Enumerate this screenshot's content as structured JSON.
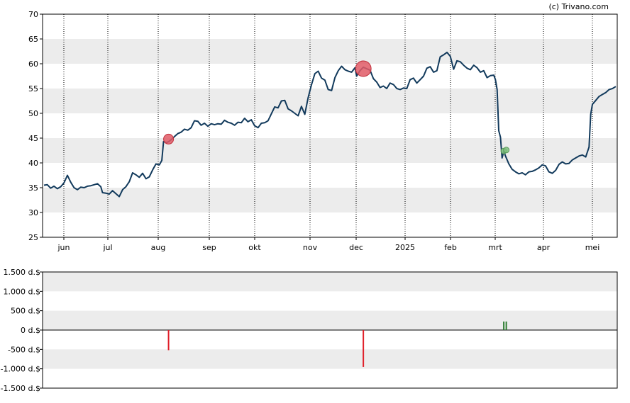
{
  "credit": "(c) Trivano.com",
  "chart_data": [
    {
      "type": "line",
      "ylim": [
        25,
        70
      ],
      "yticks": [
        25,
        30,
        35,
        40,
        45,
        50,
        55,
        60,
        65,
        70
      ],
      "x_tick_labels": [
        "jun",
        "jul",
        "aug",
        "sep",
        "okt",
        "nov",
        "dec",
        "2025",
        "feb",
        "mrt",
        "apr",
        "mei"
      ],
      "grid": "horizontal bands, dotted vertical month lines",
      "line_color": "#123a5c",
      "series": [
        {
          "values": [
            [
              0,
              35.5
            ],
            [
              4,
              35.6
            ],
            [
              8,
              34.9
            ],
            [
              12,
              35.3
            ],
            [
              16,
              34.8
            ],
            [
              20,
              35.2
            ],
            [
              24,
              36.0
            ],
            [
              28,
              37.5
            ],
            [
              32,
              36.1
            ],
            [
              36,
              35.0
            ],
            [
              40,
              34.6
            ],
            [
              44,
              35.1
            ],
            [
              48,
              35.0
            ],
            [
              52,
              35.3
            ],
            [
              56,
              35.4
            ],
            [
              60,
              35.6
            ],
            [
              64,
              35.8
            ],
            [
              68,
              35.2
            ],
            [
              70,
              34.0
            ],
            [
              74,
              33.9
            ],
            [
              78,
              33.7
            ],
            [
              82,
              34.4
            ],
            [
              86,
              33.8
            ],
            [
              90,
              33.2
            ],
            [
              94,
              34.6
            ],
            [
              98,
              35.2
            ],
            [
              102,
              36.2
            ],
            [
              106,
              38.0
            ],
            [
              110,
              37.6
            ],
            [
              114,
              37.1
            ],
            [
              118,
              37.9
            ],
            [
              122,
              36.8
            ],
            [
              126,
              37.2
            ],
            [
              130,
              38.6
            ],
            [
              134,
              39.8
            ],
            [
              138,
              39.6
            ],
            [
              141,
              40.5
            ],
            [
              143,
              44.3
            ],
            [
              147,
              44.1
            ],
            [
              150,
              44.4
            ],
            [
              153,
              44.8
            ],
            [
              156,
              45.3
            ],
            [
              160,
              45.9
            ],
            [
              164,
              46.2
            ],
            [
              168,
              46.8
            ],
            [
              172,
              46.6
            ],
            [
              176,
              47.1
            ],
            [
              180,
              48.5
            ],
            [
              184,
              48.4
            ],
            [
              188,
              47.6
            ],
            [
              192,
              48.0
            ],
            [
              196,
              47.4
            ],
            [
              200,
              47.9
            ],
            [
              204,
              47.7
            ],
            [
              208,
              47.9
            ],
            [
              212,
              47.8
            ],
            [
              216,
              48.6
            ],
            [
              220,
              48.2
            ],
            [
              224,
              48.0
            ],
            [
              228,
              47.6
            ],
            [
              232,
              48.2
            ],
            [
              236,
              48.1
            ],
            [
              240,
              49.0
            ],
            [
              244,
              48.3
            ],
            [
              248,
              48.7
            ],
            [
              252,
              47.5
            ],
            [
              256,
              47.1
            ],
            [
              260,
              48.0
            ],
            [
              264,
              48.1
            ],
            [
              268,
              48.5
            ],
            [
              272,
              49.9
            ],
            [
              276,
              51.3
            ],
            [
              280,
              51.1
            ],
            [
              284,
              52.5
            ],
            [
              288,
              52.6
            ],
            [
              292,
              50.9
            ],
            [
              296,
              50.5
            ],
            [
              300,
              50.0
            ],
            [
              304,
              49.5
            ],
            [
              308,
              51.4
            ],
            [
              312,
              49.8
            ],
            [
              316,
              53.2
            ],
            [
              320,
              55.8
            ],
            [
              324,
              58.0
            ],
            [
              328,
              58.5
            ],
            [
              332,
              57.1
            ],
            [
              336,
              56.7
            ],
            [
              340,
              54.8
            ],
            [
              344,
              54.6
            ],
            [
              348,
              57.2
            ],
            [
              352,
              58.6
            ],
            [
              356,
              59.5
            ],
            [
              360,
              58.8
            ],
            [
              364,
              58.5
            ],
            [
              368,
              58.3
            ],
            [
              372,
              59.2
            ],
            [
              374,
              57.5
            ],
            [
              378,
              58.6
            ],
            [
              382,
              59.3
            ],
            [
              386,
              59.0
            ],
            [
              390,
              58.7
            ],
            [
              394,
              57.0
            ],
            [
              398,
              56.3
            ],
            [
              402,
              55.2
            ],
            [
              406,
              55.5
            ],
            [
              410,
              55.0
            ],
            [
              414,
              56.1
            ],
            [
              418,
              55.8
            ],
            [
              422,
              55.0
            ],
            [
              426,
              54.8
            ],
            [
              430,
              55.1
            ],
            [
              434,
              55.0
            ],
            [
              438,
              56.8
            ],
            [
              442,
              57.1
            ],
            [
              446,
              56.1
            ],
            [
              450,
              56.8
            ],
            [
              454,
              57.5
            ],
            [
              458,
              59.1
            ],
            [
              462,
              59.4
            ],
            [
              466,
              58.3
            ],
            [
              470,
              58.6
            ],
            [
              474,
              61.4
            ],
            [
              478,
              61.8
            ],
            [
              482,
              62.3
            ],
            [
              486,
              61.5
            ],
            [
              490,
              58.9
            ],
            [
              494,
              60.6
            ],
            [
              498,
              60.4
            ],
            [
              502,
              59.7
            ],
            [
              506,
              59.1
            ],
            [
              510,
              58.8
            ],
            [
              514,
              59.7
            ],
            [
              518,
              59.2
            ],
            [
              522,
              58.3
            ],
            [
              526,
              58.6
            ],
            [
              530,
              57.2
            ],
            [
              534,
              57.6
            ],
            [
              538,
              57.7
            ],
            [
              540,
              56.8
            ],
            [
              542,
              54.8
            ],
            [
              544,
              46.5
            ],
            [
              546,
              45.2
            ],
            [
              548,
              41.0
            ],
            [
              550,
              42.3
            ],
            [
              552,
              41.4
            ],
            [
              556,
              39.8
            ],
            [
              560,
              38.7
            ],
            [
              564,
              38.2
            ],
            [
              568,
              37.8
            ],
            [
              572,
              38.0
            ],
            [
              576,
              37.6
            ],
            [
              580,
              38.2
            ],
            [
              584,
              38.3
            ],
            [
              588,
              38.6
            ],
            [
              592,
              39.0
            ],
            [
              596,
              39.6
            ],
            [
              600,
              39.4
            ],
            [
              604,
              38.2
            ],
            [
              608,
              37.9
            ],
            [
              612,
              38.5
            ],
            [
              616,
              39.7
            ],
            [
              620,
              40.2
            ],
            [
              624,
              39.8
            ],
            [
              628,
              39.9
            ],
            [
              632,
              40.6
            ],
            [
              636,
              41.0
            ],
            [
              640,
              41.4
            ],
            [
              644,
              41.6
            ],
            [
              648,
              41.2
            ],
            [
              652,
              43.2
            ],
            [
              654,
              49.8
            ],
            [
              656,
              51.8
            ],
            [
              660,
              52.6
            ],
            [
              664,
              53.4
            ],
            [
              668,
              53.8
            ],
            [
              672,
              54.2
            ],
            [
              676,
              54.8
            ],
            [
              680,
              55.0
            ],
            [
              684,
              55.4
            ]
          ]
        }
      ],
      "markers": [
        {
          "type": "sell",
          "x": 149,
          "y": 44.8,
          "size": "small",
          "color": "#e05a66"
        },
        {
          "type": "sell",
          "x": 382,
          "y": 59.0,
          "size": "large",
          "color": "#e05a66"
        },
        {
          "type": "buy",
          "x": 550,
          "y": 42.4,
          "size": "small",
          "color": "#7ec07e"
        },
        {
          "type": "buy",
          "x": 553,
          "y": 42.6,
          "size": "small",
          "color": "#7ec07e"
        }
      ]
    },
    {
      "type": "bar",
      "ylim": [
        -1500,
        1500
      ],
      "ytick_labels": [
        "1.500 d.$",
        "1.000 d.$",
        "500 d.$",
        "0 d.$",
        "-500 d.$",
        "-1.000 d.$",
        "-1.500 d.$"
      ],
      "yticks": [
        1500,
        1000,
        500,
        0,
        -500,
        -1000,
        -1500
      ],
      "bars": [
        {
          "x": 149,
          "value": -520,
          "color": "#e0202a"
        },
        {
          "x": 382,
          "value": -950,
          "color": "#e0202a"
        },
        {
          "x": 550,
          "value": 220,
          "color": "#2e7d32"
        },
        {
          "x": 553,
          "value": 220,
          "color": "#2e7d32"
        }
      ]
    }
  ]
}
